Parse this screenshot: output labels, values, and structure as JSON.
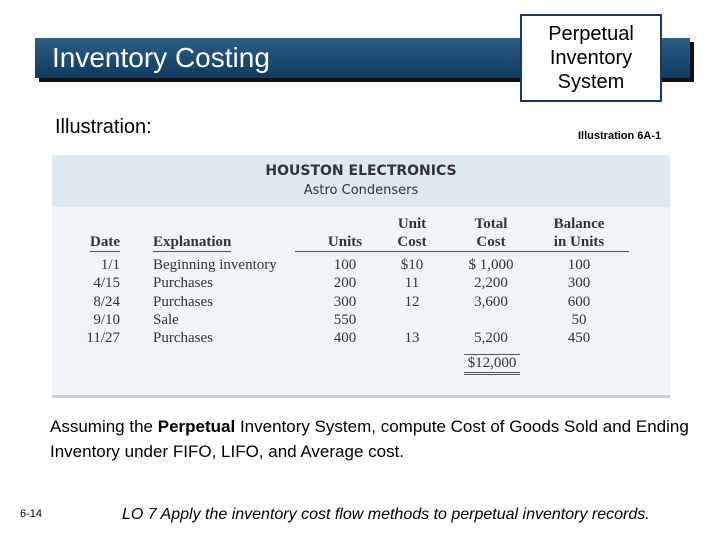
{
  "header": {
    "title": "Inventory Costing",
    "badge": [
      "Perpetual",
      "Inventory",
      "System"
    ]
  },
  "subtitle": "Illustration:",
  "illustration_ref": "Illustration 6A-1",
  "table": {
    "company": "HOUSTON ELECTRONICS",
    "product": "Astro Condensers",
    "columns": [
      [
        "Date"
      ],
      [
        "Explanation"
      ],
      [
        "Units"
      ],
      [
        "Unit",
        "Cost"
      ],
      [
        "Total",
        "Cost"
      ],
      [
        "Balance",
        "in Units"
      ]
    ],
    "rows": [
      [
        "1/1",
        "Beginning inventory",
        "100",
        "$10",
        "$  1,000",
        "100"
      ],
      [
        "4/15",
        "Purchases",
        "200",
        "11",
        "2,200",
        "300"
      ],
      [
        "8/24",
        "Purchases",
        "300",
        "12",
        "3,600",
        "600"
      ],
      [
        "9/10",
        "Sale",
        "550",
        null,
        null,
        "50"
      ],
      [
        "11/27",
        "Purchases",
        "400",
        "13",
        "5,200",
        "450"
      ]
    ],
    "total": "$12,000"
  },
  "body": {
    "parts": [
      "Assuming the ",
      "Perpetual",
      " Inventory System, compute Cost of Goods Sold and Ending Inventory under FIFO, LIFO, and Average cost."
    ]
  },
  "footer": {
    "page": "6-14",
    "lo": "LO 7  Apply the inventory cost flow methods to perpetual inventory records."
  }
}
